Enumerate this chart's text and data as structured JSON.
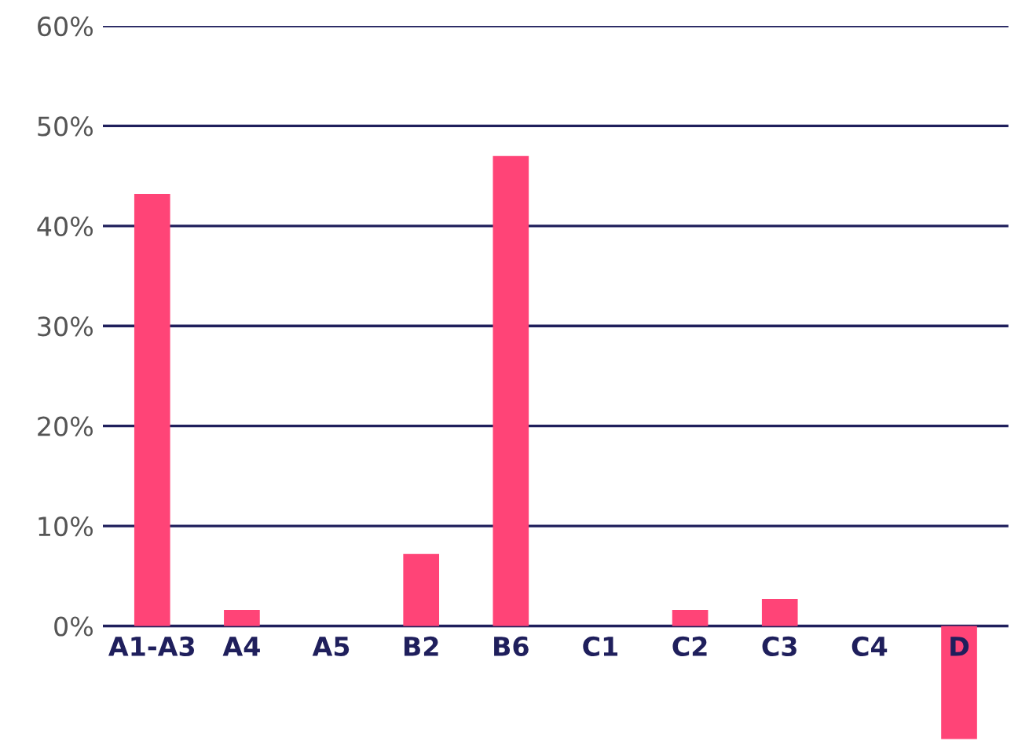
{
  "chart_data": {
    "type": "bar",
    "categories": [
      "A1-A3",
      "A4",
      "A5",
      "B2",
      "B6",
      "C1",
      "C2",
      "C3",
      "C4",
      "D"
    ],
    "values": [
      43.2,
      1.6,
      0,
      7.2,
      47.0,
      0,
      1.6,
      2.7,
      0,
      -11.3
    ],
    "color": "#ff4477",
    "ylim": [
      -11.5,
      60
    ],
    "yticks": [
      {
        "value": 0,
        "label": "0%"
      },
      {
        "value": 10,
        "label": "10%"
      },
      {
        "value": 20,
        "label": "20%"
      },
      {
        "value": 30,
        "label": "30%"
      },
      {
        "value": 40,
        "label": "40%"
      },
      {
        "value": 50,
        "label": "50%"
      },
      {
        "value": 60,
        "label": "60%"
      }
    ],
    "grid": "y"
  }
}
